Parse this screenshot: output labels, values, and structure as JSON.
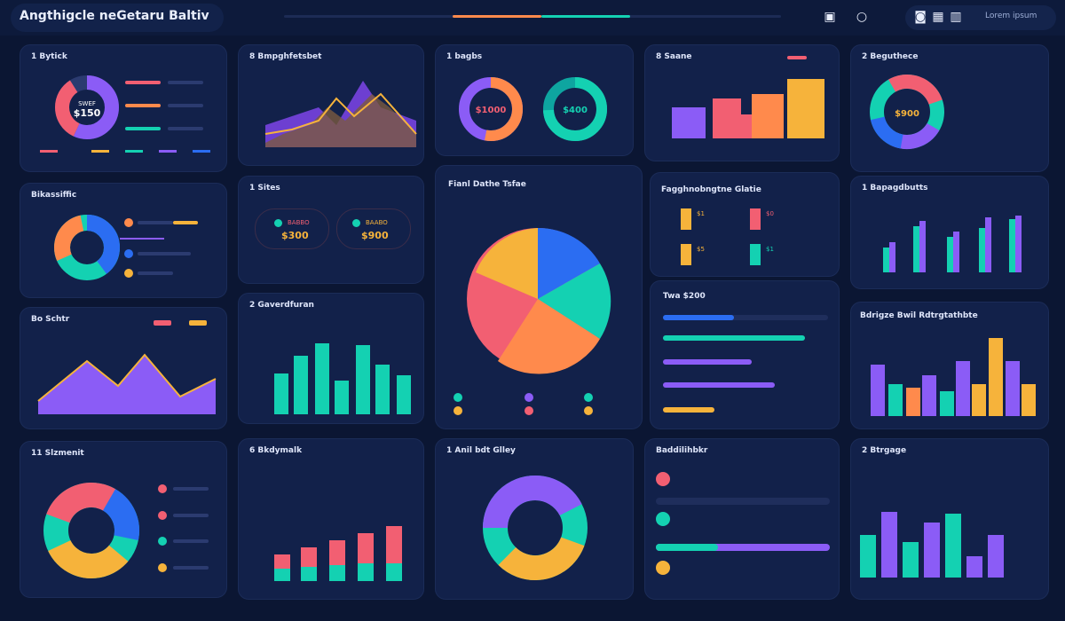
{
  "header": {
    "title": "Angthigcle neGetaru Baltiv",
    "right_pill_text": "Lorem ipsum"
  },
  "colors": {
    "bg": "#0b1633",
    "card": "#12214a",
    "purple": "#8b5cf6",
    "teal": "#14d1b2",
    "coral": "#f25f72",
    "orange": "#ff8a4c",
    "yellow": "#f6b33b",
    "blue": "#2b6df2"
  },
  "cards": {
    "c1": {
      "title": "1 Bytick",
      "center_label": "SWEF",
      "center_value": "$150"
    },
    "c2": {
      "title": "8 Bmpghfetsbet"
    },
    "c3": {
      "title": "1 bagbs",
      "v1": "$1000",
      "v2": "$400"
    },
    "c4": {
      "title": "8 Saane"
    },
    "c5": {
      "title": "2 Beguthece",
      "center_value": "$900"
    },
    "c6": {
      "title": "Bikassiffic"
    },
    "c7": {
      "title": "1 Sites",
      "m1_label": "BABBO",
      "m1_value": "$300",
      "m2_label": "BAABO",
      "m2_value": "$900"
    },
    "c8": {
      "title": "Fianl Dathe Tsfae"
    },
    "c9": {
      "title": "Fagghnobngtne Glatie",
      "m1": "$1",
      "m2": "$0",
      "m3": "$5",
      "m4": "$1"
    },
    "c10": {
      "title": "1 Bapagdbutts"
    },
    "c11": {
      "title": "Bo Schtr"
    },
    "c12": {
      "title": "2 Gaverdfuran",
      "bars_title": "Twa $200"
    },
    "c13": {
      "title": "Bdrigze Bwil Rdtrgtathbte"
    },
    "c14": {
      "title": "11 Slzmenit"
    },
    "c15": {
      "title": "6 Bkdymalk"
    },
    "c16": {
      "title": "1 Anil bdt Glley"
    },
    "c17": {
      "title": "Baddilihbkr"
    },
    "c18": {
      "title": "2 Btrgage"
    }
  }
}
